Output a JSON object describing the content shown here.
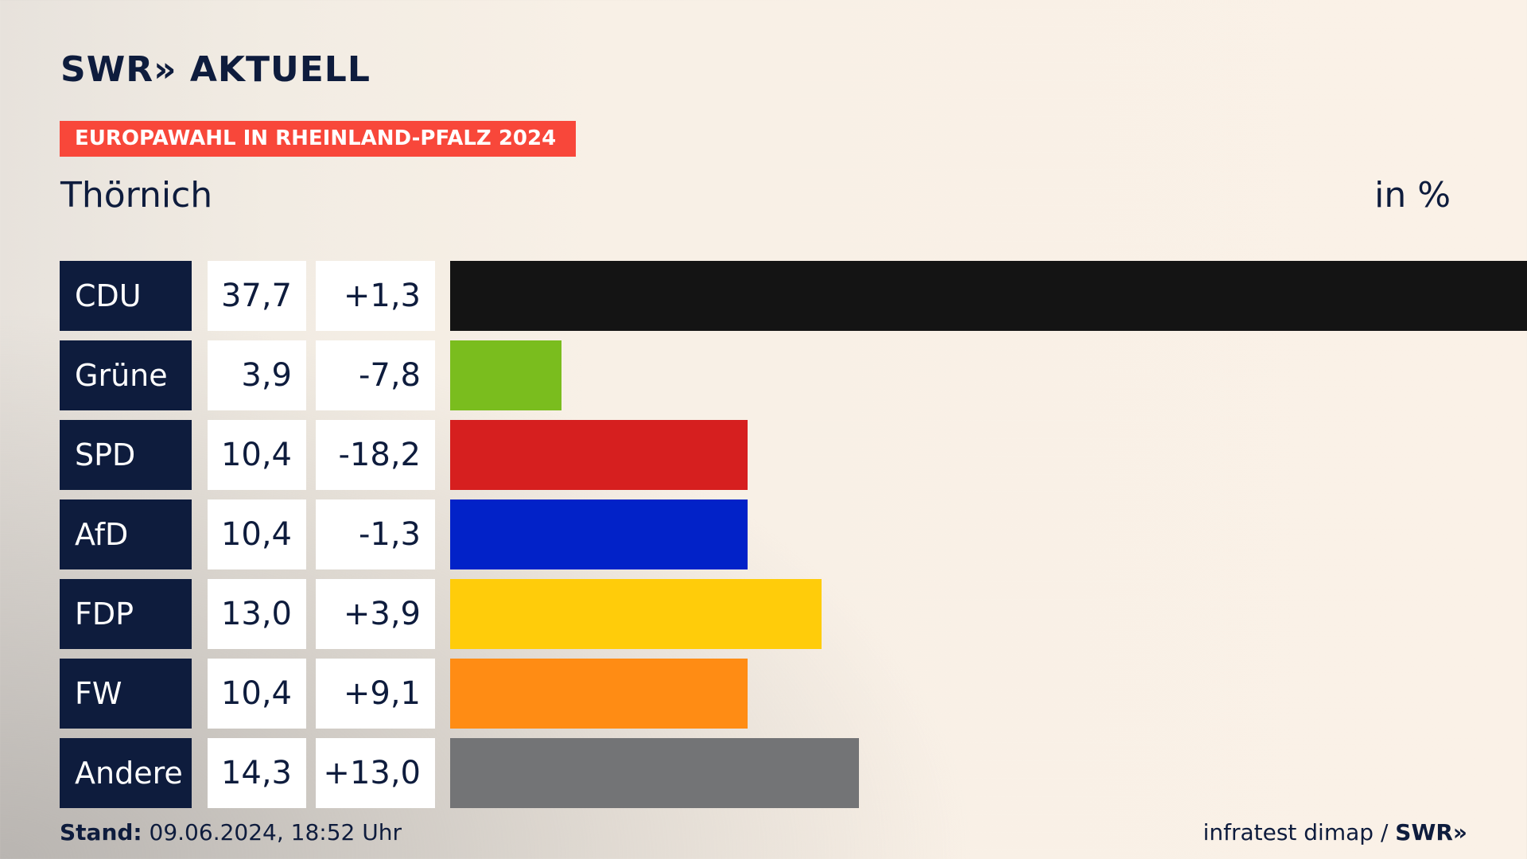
{
  "header": {
    "logo_text": "SWR» AKTUELL",
    "banner": "EUROPAWAHL IN RHEINLAND-PFALZ 2024",
    "place": "Thörnich",
    "unit": "in %"
  },
  "colors": {
    "banner": "#f8473a",
    "party_cell": "#0e1c3d"
  },
  "chart_data": {
    "type": "bar",
    "orientation": "horizontal",
    "categories": [
      "CDU",
      "Grüne",
      "SPD",
      "AfD",
      "FDP",
      "FW",
      "Andere"
    ],
    "values": [
      37.7,
      3.9,
      10.4,
      10.4,
      13.0,
      10.4,
      14.3
    ],
    "value_labels": [
      "37,7",
      "3,9",
      "10,4",
      "10,4",
      "13,0",
      "10,4",
      "14,3"
    ],
    "diff_labels": [
      "+1,3",
      "-7,8",
      "-18,2",
      "-1,3",
      "+3,9",
      "+9,1",
      "+13,0"
    ],
    "diffs": [
      1.3,
      -7.8,
      -18.2,
      -1.3,
      3.9,
      9.1,
      13.0
    ],
    "colors": [
      "#141414",
      "#7abd1e",
      "#d61f1f",
      "#0222c8",
      "#ffcc0a",
      "#ff8c14",
      "#737476"
    ],
    "xlim": [
      0,
      37.7
    ],
    "grid": false,
    "legend": "none"
  },
  "footer": {
    "stand_label": "Stand:",
    "stand_value": "09.06.2024, 18:52 Uhr",
    "source": "infratest dimap /",
    "brand": "SWR»"
  }
}
